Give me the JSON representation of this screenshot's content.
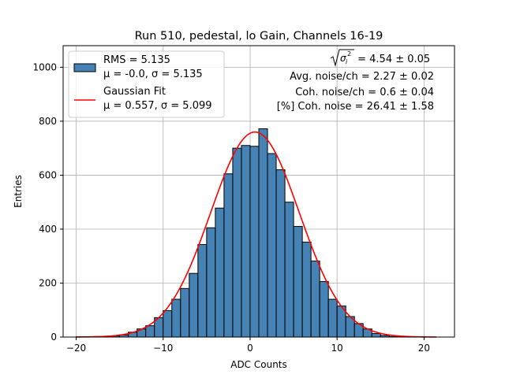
{
  "chart_data": {
    "type": "bar",
    "title": "Run 510, pedestal, lo Gain, Channels 16-19",
    "xlabel": "ADC Counts",
    "ylabel": "Entries",
    "xlim": [
      -21.5,
      23.5
    ],
    "ylim": [
      0,
      1080
    ],
    "xticks": [
      -20,
      -10,
      0,
      10,
      20
    ],
    "xtick_labels": [
      "−20",
      "−10",
      "0",
      "10",
      "20"
    ],
    "yticks": [
      0,
      200,
      400,
      600,
      800,
      1000
    ],
    "ytick_labels": [
      "0",
      "200",
      "400",
      "600",
      "800",
      "1000"
    ],
    "grid": true,
    "bin_width": 1,
    "bin_left_edges": [
      -20,
      -19,
      -18,
      -17,
      -16,
      -15,
      -14,
      -13,
      -12,
      -11,
      -10,
      -9,
      -8,
      -7,
      -6,
      -5,
      -4,
      -3,
      -2,
      -1,
      0,
      1,
      2,
      3,
      4,
      5,
      6,
      7,
      8,
      9,
      10,
      11,
      12,
      13,
      14,
      15,
      16,
      17,
      18,
      19,
      20
    ],
    "counts": [
      1,
      1,
      2,
      2,
      4,
      8,
      18,
      30,
      42,
      72,
      98,
      140,
      180,
      236,
      343,
      405,
      478,
      605,
      700,
      710,
      707,
      772,
      680,
      620,
      500,
      410,
      352,
      282,
      206,
      140,
      115,
      76,
      50,
      30,
      13,
      6,
      2,
      1,
      1,
      0,
      0
    ],
    "fill_color": "#4682b4",
    "edge_color": "#000000",
    "fit": {
      "type": "gaussian",
      "mu": 0.557,
      "sigma": 5.099,
      "amplitude": 760,
      "color": "#ff0000"
    },
    "legend": {
      "position": "top-left",
      "entries": [
        {
          "line1": "RMS = 5.135",
          "line2": "μ = -0.0, σ = 5.135"
        },
        {
          "line1": "Gaussian Fit",
          "line2": "μ = 0.557, σ = 5.099"
        }
      ]
    },
    "annotations": {
      "sqrt_sigma_value": " = 4.54 ± 0.05",
      "avg_noise": "Avg. noise/ch = 2.27 ± 0.02",
      "coh_noise": "Coh. noise/ch = 0.6 ± 0.04",
      "pct_coh_noise": "[%] Coh. noise = 26.41 ± 1.58"
    }
  }
}
